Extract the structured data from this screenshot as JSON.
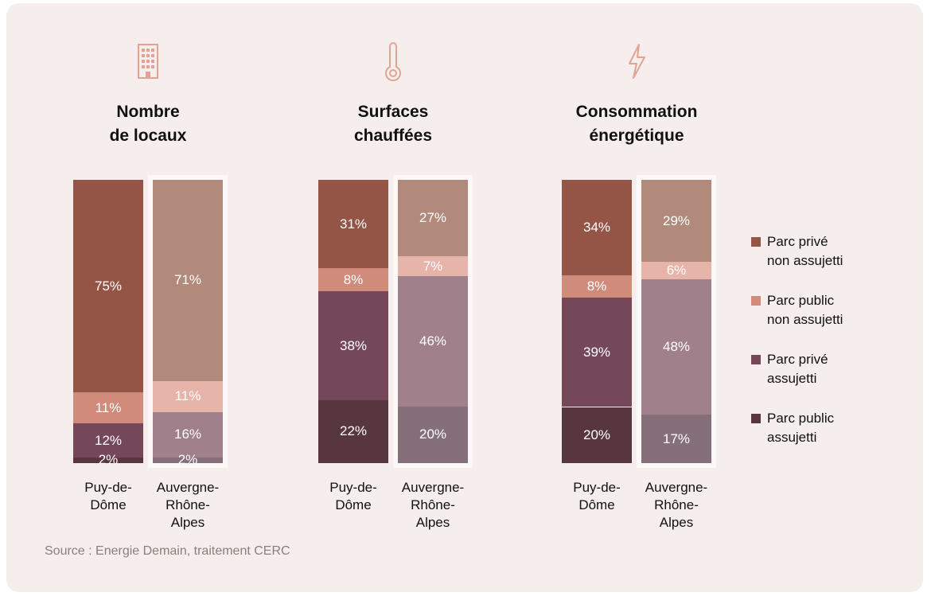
{
  "panels": [
    {
      "title": "Nombre\nde locaux",
      "icon": "building-icon"
    },
    {
      "title": "Surfaces\nchauffées",
      "icon": "thermometer-icon"
    },
    {
      "title": "Consommation\nénergétique",
      "icon": "lightning-icon"
    }
  ],
  "legend": [
    {
      "label": "Parc privé\nnon assujetti",
      "color": "#955546"
    },
    {
      "label": "Parc public\nnon assujetti",
      "color": "#d18b7b"
    },
    {
      "label": "Parc privé\nassujetti",
      "color": "#744859"
    },
    {
      "label": "Parc public\nassujetti",
      "color": "#57363f"
    }
  ],
  "source": "Source : Energie Demain, traitement CERC",
  "colors": {
    "puy": [
      "#955546",
      "#d18b7b",
      "#744859",
      "#57363f"
    ],
    "aura": [
      "#b18a7c",
      "#e7b4a9",
      "#a0808a",
      "#85707a"
    ],
    "icon": "#e2a394"
  },
  "chart_data": [
    {
      "type": "bar",
      "stacked": true,
      "title": "Nombre\nde locaux",
      "categories": [
        "Puy-de-\nDôme",
        "Auvergne-\nRhône-\nAlpes"
      ],
      "series": [
        {
          "name": "Parc privé non assujetti",
          "values": [
            75,
            71
          ],
          "labels": [
            "75%",
            "71%"
          ]
        },
        {
          "name": "Parc public non assujetti",
          "values": [
            11,
            11
          ],
          "labels": [
            "11%",
            "11%"
          ]
        },
        {
          "name": "Parc privé assujetti",
          "values": [
            12,
            16
          ],
          "labels": [
            "12%",
            "16%"
          ]
        },
        {
          "name": "Parc public assujetti",
          "values": [
            2,
            2
          ],
          "labels": [
            "2%",
            "2%"
          ]
        }
      ]
    },
    {
      "type": "bar",
      "stacked": true,
      "title": "Surfaces\nchauffées",
      "categories": [
        "Puy-de-\nDôme",
        "Auvergne-\nRhône-\nAlpes"
      ],
      "series": [
        {
          "name": "Parc privé non assujetti",
          "values": [
            31,
            27
          ],
          "labels": [
            "31%",
            "27%"
          ]
        },
        {
          "name": "Parc public non assujetti",
          "values": [
            8,
            7
          ],
          "labels": [
            "8%",
            "7%"
          ]
        },
        {
          "name": "Parc privé assujetti",
          "values": [
            38,
            46
          ],
          "labels": [
            "38%",
            "46%"
          ]
        },
        {
          "name": "Parc public assujetti",
          "values": [
            22,
            20
          ],
          "labels": [
            "22%",
            "20%"
          ]
        }
      ]
    },
    {
      "type": "bar",
      "stacked": true,
      "title": "Consommation\nénergétique",
      "categories": [
        "Puy-de-\nDôme",
        "Auvergne-\nRhône-\nAlpes"
      ],
      "series": [
        {
          "name": "Parc privé non assujetti",
          "values": [
            34,
            29
          ],
          "labels": [
            "34%",
            "29%"
          ]
        },
        {
          "name": "Parc public non assujetti",
          "values": [
            8,
            6
          ],
          "labels": [
            "8%",
            "6%"
          ]
        },
        {
          "name": "Parc privé assujetti",
          "values": [
            39,
            48
          ],
          "labels": [
            "39%",
            "48%"
          ]
        },
        {
          "name": "Parc public assujetti",
          "values": [
            20,
            17
          ],
          "labels": [
            "20%",
            "17%"
          ]
        }
      ]
    }
  ]
}
